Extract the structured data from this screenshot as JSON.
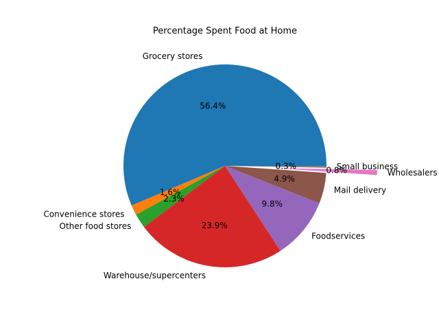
{
  "chart_data": {
    "type": "pie",
    "title": "Percentage Spent Food at Home",
    "start_angle_deg": 0,
    "direction": "counterclockwise",
    "slices": [
      {
        "label": "Grocery stores",
        "value": 56.4,
        "pct_label": "56.4%",
        "color": "#1f77b4",
        "explode": 0
      },
      {
        "label": "Convenience stores",
        "value": 1.6,
        "pct_label": "1.6%",
        "color": "#ff7f0e",
        "explode": 0
      },
      {
        "label": "Other food stores",
        "value": 2.3,
        "pct_label": "2.3%",
        "color": "#2ca02c",
        "explode": 0
      },
      {
        "label": "Warehouse/supercenters",
        "value": 23.9,
        "pct_label": "23.9%",
        "color": "#d62728",
        "explode": 0
      },
      {
        "label": "Foodservices",
        "value": 9.8,
        "pct_label": "9.8%",
        "color": "#9467bd",
        "explode": 0
      },
      {
        "label": "Mail delivery",
        "value": 4.9,
        "pct_label": "4.9%",
        "color": "#8c564b",
        "explode": 0
      },
      {
        "label": "Wholesalers",
        "value": 0.8,
        "pct_label": "0.8%",
        "color": "#e377c2",
        "explode": 0.5
      },
      {
        "label": "Small business",
        "value": 0.3,
        "pct_label": "0.3%",
        "color": "#7f7f7f",
        "explode": 0
      }
    ]
  }
}
